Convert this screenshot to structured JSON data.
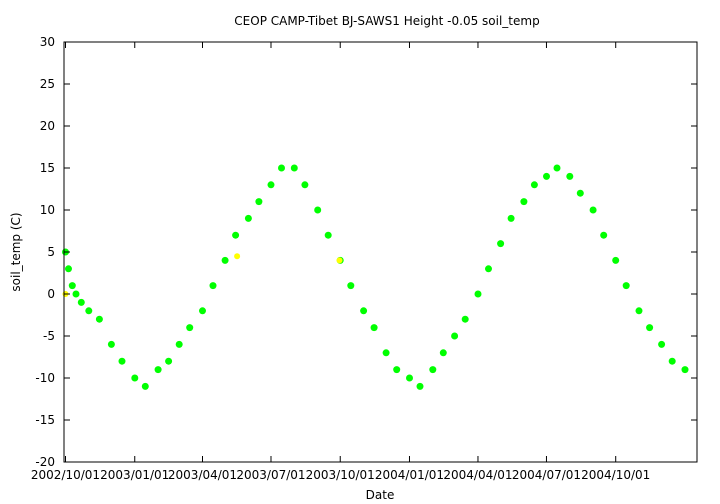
{
  "chart_data": {
    "type": "scatter",
    "title": "CEOP CAMP-Tibet BJ-SAWS1 Height -0.05 soil_temp",
    "xlabel": "Date",
    "ylabel": "soil_temp (C)",
    "xlim": [
      "2002-09-29",
      "2005-01-17"
    ],
    "ylim": [
      -20,
      30
    ],
    "yticks": [
      -20,
      -15,
      -10,
      -5,
      0,
      5,
      10,
      15,
      20,
      25,
      30
    ],
    "xticks": [
      {
        "date": "2002-10-01",
        "label": "2002/10/01"
      },
      {
        "date": "2003-01-01",
        "label": "2003/01/01"
      },
      {
        "date": "2003-04-01",
        "label": "2003/04/01"
      },
      {
        "date": "2003-07-01",
        "label": "2003/07/01"
      },
      {
        "date": "2003-10-01",
        "label": "2003/10/01"
      },
      {
        "date": "2004-01-01",
        "label": "2004/01/01"
      },
      {
        "date": "2004-04-01",
        "label": "2004/04/01"
      },
      {
        "date": "2004-07-01",
        "label": "2004/07/01"
      },
      {
        "date": "2004-10-01",
        "label": "2004/10/01"
      }
    ],
    "grid": false,
    "legend": "none",
    "series": [
      {
        "color": "#00ff00",
        "points": [
          [
            "2002-10-01",
            5
          ],
          [
            "2002-10-05",
            3
          ],
          [
            "2002-10-10",
            1
          ],
          [
            "2002-10-15",
            0
          ],
          [
            "2002-10-22",
            -1
          ],
          [
            "2002-11-01",
            -2
          ],
          [
            "2002-11-15",
            -3
          ],
          [
            "2002-12-01",
            -6
          ],
          [
            "2002-12-15",
            -8
          ],
          [
            "2003-01-01",
            -10
          ],
          [
            "2003-01-15",
            -11
          ],
          [
            "2003-02-01",
            -9
          ],
          [
            "2003-02-15",
            -8
          ],
          [
            "2003-03-01",
            -6
          ],
          [
            "2003-03-15",
            -4
          ],
          [
            "2003-04-01",
            -2
          ],
          [
            "2003-04-15",
            1
          ],
          [
            "2003-05-01",
            4
          ],
          [
            "2003-05-15",
            7
          ],
          [
            "2003-06-01",
            9
          ],
          [
            "2003-06-15",
            11
          ],
          [
            "2003-07-01",
            13
          ],
          [
            "2003-07-15",
            15
          ],
          [
            "2003-08-01",
            15
          ],
          [
            "2003-08-15",
            13
          ],
          [
            "2003-09-01",
            10
          ],
          [
            "2003-09-15",
            7
          ],
          [
            "2003-10-01",
            4
          ],
          [
            "2003-10-15",
            1
          ],
          [
            "2003-11-01",
            -2
          ],
          [
            "2003-11-15",
            -4
          ],
          [
            "2003-12-01",
            -7
          ],
          [
            "2003-12-15",
            -9
          ],
          [
            "2004-01-01",
            -10
          ],
          [
            "2004-01-15",
            -11
          ],
          [
            "2004-02-01",
            -9
          ],
          [
            "2004-02-15",
            -7
          ],
          [
            "2004-03-01",
            -5
          ],
          [
            "2004-03-15",
            -3
          ],
          [
            "2004-04-01",
            0
          ],
          [
            "2004-04-15",
            3
          ],
          [
            "2004-05-01",
            6
          ],
          [
            "2004-05-15",
            9
          ],
          [
            "2004-06-01",
            11
          ],
          [
            "2004-06-15",
            13
          ],
          [
            "2004-07-01",
            14
          ],
          [
            "2004-07-15",
            15
          ],
          [
            "2004-08-01",
            14
          ],
          [
            "2004-08-15",
            12
          ],
          [
            "2004-09-01",
            10
          ],
          [
            "2004-09-15",
            7
          ],
          [
            "2004-10-01",
            4
          ],
          [
            "2004-10-15",
            1
          ],
          [
            "2004-11-01",
            -2
          ],
          [
            "2004-11-15",
            -4
          ],
          [
            "2004-12-01",
            -6
          ],
          [
            "2004-12-15",
            -8
          ],
          [
            "2005-01-01",
            -9
          ]
        ]
      },
      {
        "color": "#ffff00",
        "points": [
          [
            "2002-10-01",
            0
          ],
          [
            "2003-05-17",
            4.5
          ],
          [
            "2003-09-30",
            4
          ]
        ]
      }
    ]
  }
}
